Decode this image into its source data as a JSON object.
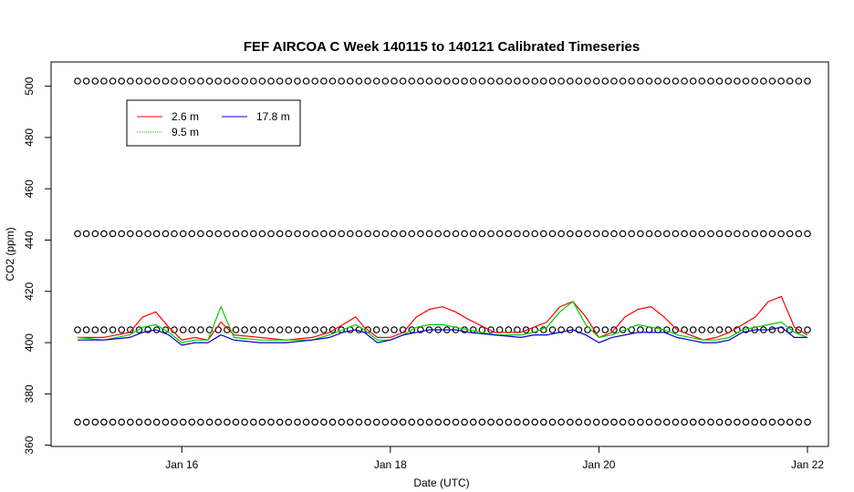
{
  "chart_data": {
    "type": "line",
    "title": "FEF AIRCOA C  Week 140115 to 140121  Calibrated Timeseries",
    "xlabel": "Date (UTC)",
    "ylabel": "CO2 (ppm)",
    "x_unit": "day",
    "xlim": [
      "2014-01-15 00:00",
      "2014-01-22 00:00"
    ],
    "ylim": [
      360,
      505
    ],
    "x_ticks": [
      "Jan 16",
      "Jan 18",
      "Jan 20",
      "Jan 22"
    ],
    "y_ticks": [
      360,
      380,
      400,
      420,
      440,
      460,
      480,
      500
    ],
    "grid": false,
    "legend": {
      "position": "top-left",
      "entries": [
        "2.6 m",
        "9.5 m",
        "17.8 m"
      ]
    },
    "series": [
      {
        "name": "2.6 m",
        "color": "#ff0000",
        "x": [
          "2014-01-15 00:00",
          "2014-01-15 06:00",
          "2014-01-15 12:00",
          "2014-01-15 15:00",
          "2014-01-15 18:00",
          "2014-01-15 21:00",
          "2014-01-16 00:00",
          "2014-01-16 03:00",
          "2014-01-16 06:00",
          "2014-01-16 09:00",
          "2014-01-16 12:00",
          "2014-01-16 18:00",
          "2014-01-17 00:00",
          "2014-01-17 06:00",
          "2014-01-17 10:00",
          "2014-01-17 13:00",
          "2014-01-17 16:00",
          "2014-01-17 18:00",
          "2014-01-17 21:00",
          "2014-01-18 00:00",
          "2014-01-18 03:00",
          "2014-01-18 06:00",
          "2014-01-18 09:00",
          "2014-01-18 12:00",
          "2014-01-18 15:00",
          "2014-01-18 18:00",
          "2014-01-19 00:00",
          "2014-01-19 06:00",
          "2014-01-19 09:00",
          "2014-01-19 12:00",
          "2014-01-19 15:00",
          "2014-01-19 18:00",
          "2014-01-19 21:00",
          "2014-01-20 00:00",
          "2014-01-20 03:00",
          "2014-01-20 06:00",
          "2014-01-20 09:00",
          "2014-01-20 12:00",
          "2014-01-20 15:00",
          "2014-01-20 18:00",
          "2014-01-21 00:00",
          "2014-01-21 03:00",
          "2014-01-21 06:00",
          "2014-01-21 09:00",
          "2014-01-21 12:00",
          "2014-01-21 15:00",
          "2014-01-21 18:00",
          "2014-01-21 21:00",
          "2014-01-22 00:00"
        ],
        "y": [
          402,
          402,
          404,
          410,
          412,
          406,
          401,
          402,
          401,
          408,
          403,
          402,
          401,
          402,
          404,
          407,
          410,
          406,
          402,
          402,
          404,
          410,
          413,
          414,
          412,
          409,
          404,
          404,
          406,
          408,
          414,
          416,
          410,
          402,
          404,
          410,
          413,
          414,
          410,
          405,
          401,
          402,
          404,
          407,
          410,
          416,
          418,
          406,
          403
        ]
      },
      {
        "name": "9.5 m",
        "color": "#00cc00",
        "x": [
          "2014-01-15 00:00",
          "2014-01-15 06:00",
          "2014-01-15 12:00",
          "2014-01-15 15:00",
          "2014-01-15 18:00",
          "2014-01-15 21:00",
          "2014-01-16 00:00",
          "2014-01-16 03:00",
          "2014-01-16 06:00",
          "2014-01-16 09:00",
          "2014-01-16 12:00",
          "2014-01-16 18:00",
          "2014-01-17 00:00",
          "2014-01-17 06:00",
          "2014-01-17 10:00",
          "2014-01-17 13:00",
          "2014-01-17 16:00",
          "2014-01-17 18:00",
          "2014-01-17 21:00",
          "2014-01-18 00:00",
          "2014-01-18 03:00",
          "2014-01-18 06:00",
          "2014-01-18 09:00",
          "2014-01-18 12:00",
          "2014-01-18 15:00",
          "2014-01-18 18:00",
          "2014-01-19 00:00",
          "2014-01-19 06:00",
          "2014-01-19 09:00",
          "2014-01-19 12:00",
          "2014-01-19 15:00",
          "2014-01-19 18:00",
          "2014-01-19 21:00",
          "2014-01-20 00:00",
          "2014-01-20 03:00",
          "2014-01-20 06:00",
          "2014-01-20 09:00",
          "2014-01-20 12:00",
          "2014-01-20 15:00",
          "2014-01-20 18:00",
          "2014-01-21 00:00",
          "2014-01-21 03:00",
          "2014-01-21 06:00",
          "2014-01-21 09:00",
          "2014-01-21 12:00",
          "2014-01-21 15:00",
          "2014-01-21 18:00",
          "2014-01-21 21:00",
          "2014-01-22 00:00"
        ],
        "y": [
          402,
          401,
          403,
          406,
          407,
          404,
          400,
          401,
          401,
          414,
          402,
          401,
          401,
          401,
          403,
          405,
          407,
          405,
          401,
          401,
          403,
          406,
          407,
          407,
          406,
          405,
          403,
          403,
          404,
          406,
          412,
          416,
          407,
          402,
          403,
          405,
          407,
          406,
          405,
          403,
          401,
          401,
          402,
          405,
          406,
          407,
          408,
          404,
          402
        ]
      },
      {
        "name": "17.8 m",
        "color": "#0000cc",
        "x": [
          "2014-01-15 00:00",
          "2014-01-15 06:00",
          "2014-01-15 12:00",
          "2014-01-15 15:00",
          "2014-01-15 18:00",
          "2014-01-15 21:00",
          "2014-01-16 00:00",
          "2014-01-16 03:00",
          "2014-01-16 06:00",
          "2014-01-16 09:00",
          "2014-01-16 12:00",
          "2014-01-16 18:00",
          "2014-01-17 00:00",
          "2014-01-17 06:00",
          "2014-01-17 10:00",
          "2014-01-17 13:00",
          "2014-01-17 16:00",
          "2014-01-17 18:00",
          "2014-01-17 21:00",
          "2014-01-18 00:00",
          "2014-01-18 03:00",
          "2014-01-18 06:00",
          "2014-01-18 09:00",
          "2014-01-18 12:00",
          "2014-01-18 15:00",
          "2014-01-18 18:00",
          "2014-01-19 00:00",
          "2014-01-19 06:00",
          "2014-01-19 09:00",
          "2014-01-19 12:00",
          "2014-01-19 15:00",
          "2014-01-19 18:00",
          "2014-01-19 21:00",
          "2014-01-20 00:00",
          "2014-01-20 03:00",
          "2014-01-20 06:00",
          "2014-01-20 09:00",
          "2014-01-20 12:00",
          "2014-01-20 15:00",
          "2014-01-20 18:00",
          "2014-01-21 00:00",
          "2014-01-21 03:00",
          "2014-01-21 06:00",
          "2014-01-21 09:00",
          "2014-01-21 12:00",
          "2014-01-21 15:00",
          "2014-01-21 18:00",
          "2014-01-21 21:00",
          "2014-01-22 00:00"
        ],
        "y": [
          401,
          401,
          402,
          404,
          405,
          403,
          399,
          400,
          400,
          403,
          401,
          400,
          400,
          401,
          402,
          404,
          405,
          404,
          400,
          401,
          403,
          404,
          405,
          405,
          405,
          404,
          403,
          402,
          403,
          403,
          404,
          405,
          403,
          400,
          402,
          403,
          404,
          404,
          404,
          402,
          400,
          400,
          401,
          404,
          405,
          405,
          406,
          402,
          402
        ]
      }
    ],
    "markers": {
      "symbol": "open-circle",
      "color": "#000000",
      "levels": [
        369,
        405,
        442.5,
        502
      ],
      "x_start": "2014-01-15 00:00",
      "x_end": "2014-01-22 00:00",
      "count_per_level": 84
    }
  }
}
